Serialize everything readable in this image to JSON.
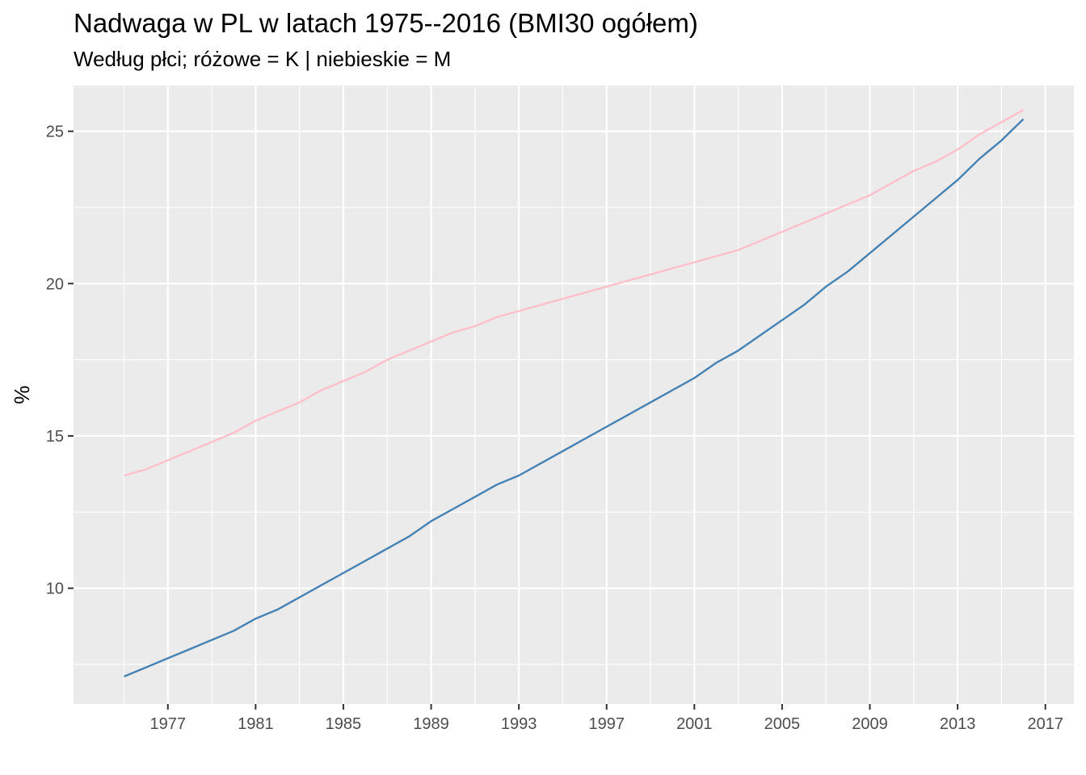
{
  "chart_data": {
    "type": "line",
    "title": "Nadwaga w PL w latach 1975--2016 (BMI30 ogółem)",
    "subtitle": "Według płci; różowe = K | niebieskie = M",
    "xlabel": "",
    "ylabel": "%",
    "xlim": [
      1972.7,
      2018.3
    ],
    "ylim": [
      6.2,
      26.5
    ],
    "x_ticks": [
      1977,
      1981,
      1985,
      1989,
      1993,
      1997,
      2001,
      2005,
      2009,
      2013,
      2017
    ],
    "y_ticks": [
      10,
      15,
      20,
      25
    ],
    "grid": true,
    "background": "#EBEBEB",
    "x": [
      1975,
      1976,
      1977,
      1978,
      1979,
      1980,
      1981,
      1982,
      1983,
      1984,
      1985,
      1986,
      1987,
      1988,
      1989,
      1990,
      1991,
      1992,
      1993,
      1994,
      1995,
      1996,
      1997,
      1998,
      1999,
      2000,
      2001,
      2002,
      2003,
      2004,
      2005,
      2006,
      2007,
      2008,
      2009,
      2010,
      2011,
      2012,
      2013,
      2014,
      2015,
      2016
    ],
    "series": [
      {
        "color": "#FFC0CB",
        "values": [
          13.7,
          13.9,
          14.2,
          14.5,
          14.8,
          15.1,
          15.5,
          15.8,
          16.1,
          16.5,
          16.8,
          17.1,
          17.5,
          17.8,
          18.1,
          18.4,
          18.6,
          18.9,
          19.1,
          19.3,
          19.5,
          19.7,
          19.9,
          20.1,
          20.3,
          20.5,
          20.7,
          20.9,
          21.1,
          21.4,
          21.7,
          22.0,
          22.3,
          22.6,
          22.9,
          23.3,
          23.7,
          24.0,
          24.4,
          24.9,
          25.3,
          25.7
        ]
      },
      {
        "color": "#4682B4",
        "values": [
          7.1,
          7.4,
          7.7,
          8.0,
          8.3,
          8.6,
          9.0,
          9.3,
          9.7,
          10.1,
          10.5,
          10.9,
          11.3,
          11.7,
          12.2,
          12.6,
          13.0,
          13.4,
          13.7,
          14.1,
          14.5,
          14.9,
          15.3,
          15.7,
          16.1,
          16.5,
          16.9,
          17.4,
          17.8,
          18.3,
          18.8,
          19.3,
          19.9,
          20.4,
          21.0,
          21.6,
          22.2,
          22.8,
          23.4,
          24.1,
          24.7,
          25.4
        ]
      }
    ]
  }
}
